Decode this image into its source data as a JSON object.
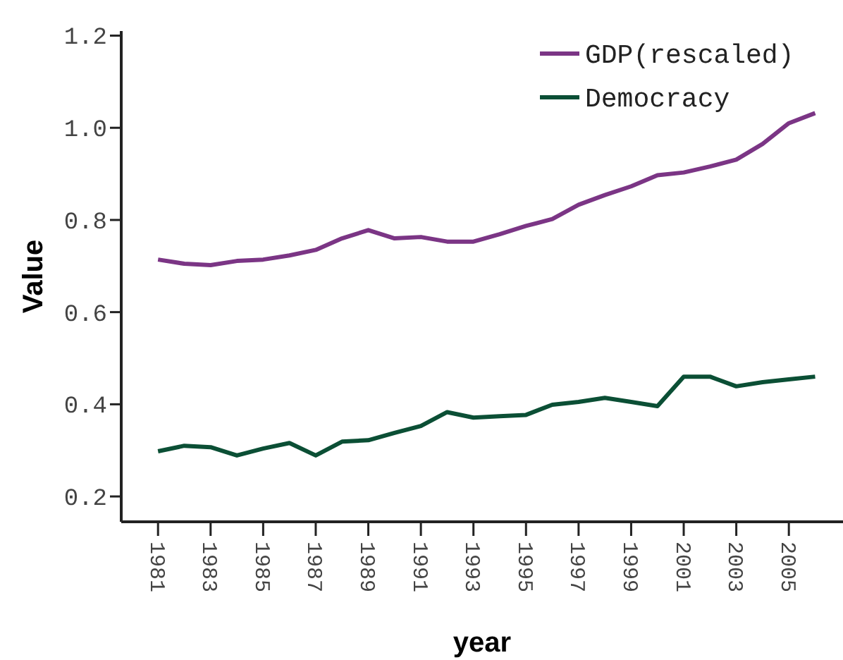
{
  "chart_data": {
    "type": "line",
    "xlabel": "year",
    "ylabel": "Value",
    "x": [
      1981,
      1982,
      1983,
      1984,
      1985,
      1986,
      1987,
      1988,
      1989,
      1990,
      1991,
      1992,
      1993,
      1994,
      1995,
      1996,
      1997,
      1998,
      1999,
      2000,
      2001,
      2002,
      2003,
      2004,
      2005,
      2006
    ],
    "series": [
      {
        "name": "GDP(rescaled)",
        "color": "#7b3585",
        "values": [
          0.714,
          0.705,
          0.702,
          0.711,
          0.714,
          0.723,
          0.735,
          0.76,
          0.778,
          0.76,
          0.763,
          0.753,
          0.753,
          0.769,
          0.787,
          0.802,
          0.833,
          0.854,
          0.873,
          0.897,
          0.903,
          0.916,
          0.931,
          0.965,
          1.01,
          1.032
        ]
      },
      {
        "name": "Democracy",
        "color": "#0b4f35",
        "values": [
          0.298,
          0.31,
          0.307,
          0.289,
          0.304,
          0.316,
          0.289,
          0.319,
          0.322,
          0.338,
          0.353,
          0.383,
          0.371,
          0.374,
          0.377,
          0.399,
          0.405,
          0.414,
          0.405,
          0.396,
          0.46,
          0.46,
          0.439,
          0.448,
          0.454,
          0.46
        ]
      }
    ],
    "xlim": [
      1979.6,
      2007.06
    ],
    "ylim": [
      0.145,
      1.21
    ],
    "xticks": [
      1981,
      1983,
      1985,
      1987,
      1989,
      1991,
      1993,
      1995,
      1997,
      1999,
      2001,
      2003,
      2005
    ],
    "yticks": [
      {
        "value": 0.2,
        "label": "0.2"
      },
      {
        "value": 0.4,
        "label": "0.4"
      },
      {
        "value": 0.6,
        "label": "0.6"
      },
      {
        "value": 0.8,
        "label": "0.8"
      },
      {
        "value": 1.0,
        "label": "1.0"
      },
      {
        "value": 1.2,
        "label": "1.2"
      }
    ],
    "grid": false,
    "legend": "top right",
    "marker": "none",
    "line_style": "solid"
  }
}
